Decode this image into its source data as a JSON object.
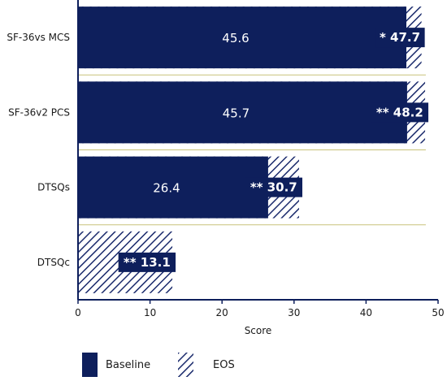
{
  "chart_data": {
    "type": "bar",
    "orientation": "horizontal",
    "title": "",
    "xlabel": "Score",
    "ylabel": "",
    "xlim": [
      0,
      50
    ],
    "xticks": [
      "0",
      "10",
      "20",
      "30",
      "40",
      "50"
    ],
    "categories": [
      "SF-36vs MCS",
      "SF-36v2 PCS",
      "DTSQs",
      "DTSQc"
    ],
    "series": [
      {
        "name": "Baseline",
        "values": [
          45.6,
          45.7,
          26.4,
          null
        ],
        "labels": [
          "45.6",
          "45.7",
          "26.4",
          ""
        ]
      },
      {
        "name": "EOS",
        "values": [
          47.7,
          48.2,
          30.7,
          13.1
        ],
        "labels": [
          "* 47.7",
          "** 48.2",
          "** 30.7",
          "** 13.1"
        ]
      }
    ],
    "grid": false,
    "legend": "bottom",
    "colors": {
      "baseline": "#0e1f5c",
      "eos_hatch": "#1a2a6c",
      "axis": "#0e1f5c",
      "divider": "#c8c27a"
    }
  }
}
